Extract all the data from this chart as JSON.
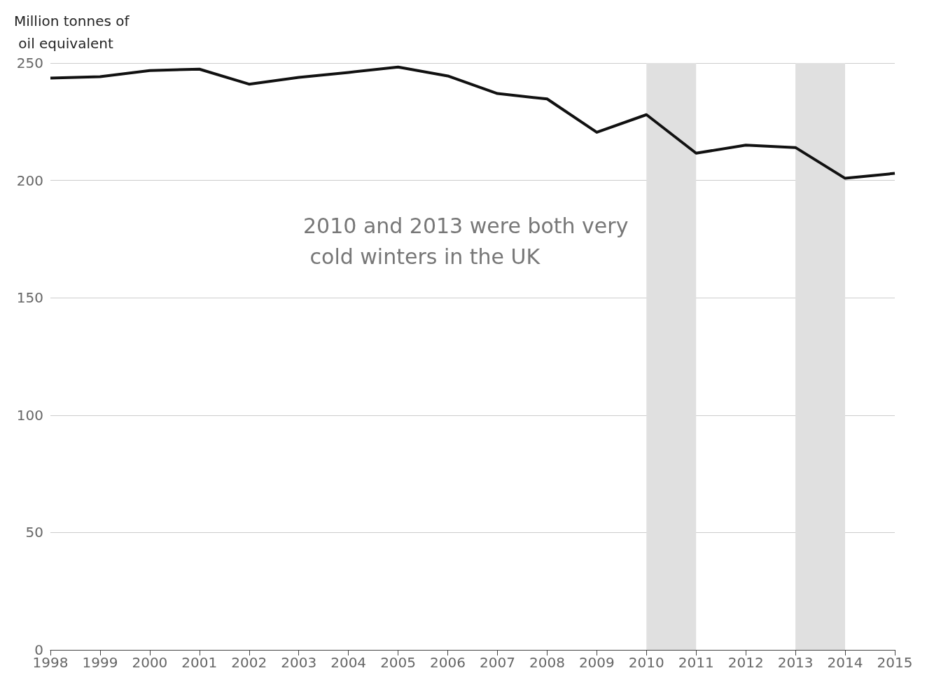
{
  "chart_data": {
    "type": "line",
    "ylabel": "Million tonnes of oil equivalent",
    "x": [
      1998,
      1999,
      2000,
      2001,
      2002,
      2003,
      2004,
      2005,
      2006,
      2007,
      2008,
      2009,
      2010,
      2011,
      2012,
      2013,
      2014,
      2015
    ],
    "series": [
      {
        "color": "#111111",
        "values": [
          243.6,
          244.2,
          246.8,
          247.4,
          241,
          243.9,
          246,
          248.3,
          244.5,
          237,
          234.7,
          220.5,
          228,
          211.6,
          215,
          214,
          200.9,
          203
        ]
      }
    ],
    "xlim": [
      1998,
      2015
    ],
    "xticks": [
      1998,
      1999,
      2000,
      2001,
      2002,
      2003,
      2004,
      2005,
      2006,
      2007,
      2008,
      2009,
      2010,
      2011,
      2012,
      2013,
      2014,
      2015
    ],
    "ylim": [
      0,
      250
    ],
    "yticks": [
      0,
      50,
      100,
      150,
      200,
      250
    ],
    "bands": [
      {
        "axis": "x",
        "from": 2010,
        "to": 2011,
        "color": "#e0e0e0"
      },
      {
        "axis": "x",
        "from": 2013,
        "to": 2014,
        "color": "#e0e0e0"
      }
    ],
    "annotations": [
      "2010 and 2013 were both very cold winters in the UK"
    ],
    "grid": "y",
    "legend": false
  }
}
